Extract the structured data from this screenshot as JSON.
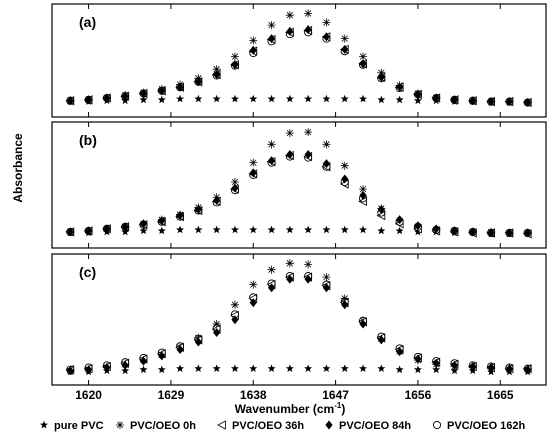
{
  "chart_data": {
    "type": "scatter",
    "ylabel": "Absorbance",
    "xlabel": "Wavenumber (cm",
    "xlabel_superscript": "-1",
    "xlabel_suffix": ")",
    "xlim": [
      1616,
      1670
    ],
    "x_ticks": [
      1620,
      1629,
      1638,
      1647,
      1656,
      1665
    ],
    "x_tick_labels": [
      "1620",
      "1629",
      "1638",
      "1647",
      "1656",
      "1665"
    ],
    "grid": false,
    "legend_position": "bottom",
    "legend": [
      {
        "label": "pure PVC",
        "marker": "star-filled"
      },
      {
        "label": "PVC/OEO 0h",
        "marker": "asterisk"
      },
      {
        "label": "PVC/OEO  36h",
        "marker": "triangle-left-open"
      },
      {
        "label": "PVC/OEO 84h",
        "marker": "diamond-filled"
      },
      {
        "label": "PVC/OEO 162h",
        "marker": "circle-open"
      }
    ],
    "panels": [
      {
        "label": "(a)",
        "ylim": [
          0,
          1.1
        ],
        "x": [
          1616,
          1618,
          1620,
          1622,
          1624,
          1626,
          1628,
          1630,
          1632,
          1634,
          1636,
          1638,
          1640,
          1642,
          1644,
          1646,
          1648,
          1650,
          1652,
          1654,
          1656,
          1658,
          1660,
          1662,
          1664,
          1666,
          1668,
          1670
        ],
        "series": [
          {
            "name": "pure PVC",
            "values": [
              0.05,
              0.06,
              0.06,
              0.07,
              0.07,
              0.08,
              0.08,
              0.09,
              0.09,
              0.09,
              0.09,
              0.09,
              0.09,
              0.09,
              0.09,
              0.09,
              0.09,
              0.09,
              0.08,
              0.08,
              0.07,
              0.07,
              0.06,
              0.06,
              0.05,
              0.05,
              0.05,
              0.05
            ]
          },
          {
            "name": "PVC/OEO 0h",
            "values": [
              0.06,
              0.07,
              0.08,
              0.1,
              0.13,
              0.16,
              0.2,
              0.25,
              0.32,
              0.42,
              0.56,
              0.74,
              0.91,
              1.02,
              1.04,
              0.94,
              0.76,
              0.56,
              0.38,
              0.24,
              0.15,
              0.1,
              0.08,
              0.07,
              0.06,
              0.06,
              0.05,
              0.05
            ]
          },
          {
            "name": "PVC/OEO  36h",
            "values": [
              0.06,
              0.07,
              0.08,
              0.1,
              0.12,
              0.15,
              0.18,
              0.22,
              0.28,
              0.36,
              0.47,
              0.62,
              0.75,
              0.83,
              0.85,
              0.78,
              0.64,
              0.48,
              0.33,
              0.22,
              0.14,
              0.1,
              0.08,
              0.07,
              0.06,
              0.06,
              0.05,
              0.05
            ]
          },
          {
            "name": "PVC/OEO 84h",
            "values": [
              0.06,
              0.07,
              0.08,
              0.1,
              0.12,
              0.15,
              0.18,
              0.22,
              0.28,
              0.36,
              0.47,
              0.63,
              0.76,
              0.84,
              0.86,
              0.78,
              0.64,
              0.48,
              0.33,
              0.22,
              0.14,
              0.1,
              0.08,
              0.07,
              0.06,
              0.06,
              0.05,
              0.05
            ]
          },
          {
            "name": "PVC/OEO 162h",
            "values": [
              0.06,
              0.07,
              0.08,
              0.1,
              0.12,
              0.15,
              0.18,
              0.22,
              0.28,
              0.35,
              0.46,
              0.6,
              0.73,
              0.81,
              0.83,
              0.76,
              0.62,
              0.47,
              0.32,
              0.21,
              0.14,
              0.1,
              0.08,
              0.07,
              0.06,
              0.06,
              0.05,
              0.05
            ]
          }
        ]
      },
      {
        "label": "(b)",
        "ylim": [
          0,
          1.1
        ],
        "x": [
          1616,
          1618,
          1620,
          1622,
          1624,
          1626,
          1628,
          1630,
          1632,
          1634,
          1636,
          1638,
          1640,
          1642,
          1644,
          1646,
          1648,
          1650,
          1652,
          1654,
          1656,
          1658,
          1660,
          1662,
          1664,
          1666,
          1668,
          1670
        ],
        "series": [
          {
            "name": "pure PVC",
            "values": [
              0.04,
              0.05,
              0.05,
              0.06,
              0.06,
              0.07,
              0.07,
              0.08,
              0.08,
              0.08,
              0.08,
              0.08,
              0.08,
              0.08,
              0.08,
              0.08,
              0.08,
              0.08,
              0.07,
              0.07,
              0.06,
              0.06,
              0.05,
              0.05,
              0.04,
              0.04,
              0.04,
              0.04
            ]
          },
          {
            "name": "PVC/OEO 0h",
            "values": [
              0.05,
              0.06,
              0.07,
              0.09,
              0.11,
              0.14,
              0.18,
              0.23,
              0.3,
              0.4,
              0.55,
              0.74,
              0.92,
              1.03,
              1.04,
              0.92,
              0.71,
              0.48,
              0.29,
              0.17,
              0.11,
              0.08,
              0.07,
              0.06,
              0.06,
              0.05,
              0.05,
              0.05
            ]
          },
          {
            "name": "PVC/OEO  36h",
            "values": [
              0.05,
              0.06,
              0.07,
              0.09,
              0.11,
              0.13,
              0.16,
              0.21,
              0.27,
              0.36,
              0.48,
              0.63,
              0.75,
              0.81,
              0.8,
              0.7,
              0.53,
              0.36,
              0.22,
              0.14,
              0.09,
              0.07,
              0.06,
              0.05,
              0.05,
              0.05,
              0.04,
              0.04
            ]
          },
          {
            "name": "PVC/OEO 84h",
            "values": [
              0.05,
              0.06,
              0.07,
              0.09,
              0.11,
              0.14,
              0.17,
              0.22,
              0.28,
              0.37,
              0.49,
              0.64,
              0.76,
              0.82,
              0.82,
              0.73,
              0.58,
              0.42,
              0.28,
              0.18,
              0.12,
              0.09,
              0.07,
              0.06,
              0.05,
              0.05,
              0.05,
              0.05
            ]
          },
          {
            "name": "PVC/OEO 162h",
            "values": [
              0.05,
              0.06,
              0.07,
              0.09,
              0.11,
              0.13,
              0.16,
              0.21,
              0.27,
              0.35,
              0.47,
              0.62,
              0.74,
              0.8,
              0.79,
              0.7,
              0.55,
              0.39,
              0.25,
              0.16,
              0.11,
              0.08,
              0.07,
              0.06,
              0.05,
              0.05,
              0.05,
              0.05
            ]
          }
        ]
      },
      {
        "label": "(c)",
        "ylim": [
          0,
          1.1
        ],
        "x": [
          1616,
          1618,
          1620,
          1622,
          1624,
          1626,
          1628,
          1630,
          1632,
          1634,
          1636,
          1638,
          1640,
          1642,
          1644,
          1646,
          1648,
          1650,
          1652,
          1654,
          1656,
          1658,
          1660,
          1662,
          1664,
          1666,
          1668,
          1670
        ],
        "series": [
          {
            "name": "pure PVC",
            "values": [
              0.02,
              0.03,
              0.03,
              0.04,
              0.04,
              0.05,
              0.05,
              0.06,
              0.06,
              0.06,
              0.06,
              0.06,
              0.06,
              0.06,
              0.06,
              0.06,
              0.06,
              0.06,
              0.06,
              0.05,
              0.05,
              0.05,
              0.04,
              0.04,
              0.03,
              0.03,
              0.03,
              0.03
            ]
          },
          {
            "name": "PVC/OEO 0h",
            "values": [
              0.02,
              0.04,
              0.05,
              0.07,
              0.1,
              0.14,
              0.19,
              0.26,
              0.35,
              0.48,
              0.66,
              0.85,
              0.99,
              1.05,
              1.04,
              0.92,
              0.72,
              0.51,
              0.34,
              0.22,
              0.14,
              0.1,
              0.08,
              0.07,
              0.06,
              0.05,
              0.05,
              0.05
            ]
          },
          {
            "name": "PVC/OEO  36h",
            "values": [
              0.03,
              0.05,
              0.06,
              0.08,
              0.11,
              0.15,
              0.2,
              0.26,
              0.33,
              0.43,
              0.56,
              0.72,
              0.85,
              0.92,
              0.92,
              0.84,
              0.68,
              0.5,
              0.35,
              0.24,
              0.16,
              0.12,
              0.1,
              0.08,
              0.07,
              0.06,
              0.06,
              0.05
            ]
          },
          {
            "name": "PVC/OEO 84h",
            "values": [
              0.03,
              0.04,
              0.05,
              0.07,
              0.09,
              0.13,
              0.18,
              0.24,
              0.31,
              0.4,
              0.52,
              0.68,
              0.82,
              0.9,
              0.9,
              0.82,
              0.66,
              0.48,
              0.33,
              0.22,
              0.15,
              0.11,
              0.09,
              0.08,
              0.07,
              0.06,
              0.05,
              0.05
            ]
          },
          {
            "name": "PVC/OEO 162h",
            "values": [
              0.04,
              0.05,
              0.07,
              0.09,
              0.12,
              0.16,
              0.21,
              0.27,
              0.34,
              0.44,
              0.57,
              0.73,
              0.86,
              0.93,
              0.93,
              0.85,
              0.69,
              0.51,
              0.36,
              0.25,
              0.17,
              0.13,
              0.11,
              0.09,
              0.08,
              0.07,
              0.06,
              0.06
            ]
          }
        ]
      }
    ]
  }
}
